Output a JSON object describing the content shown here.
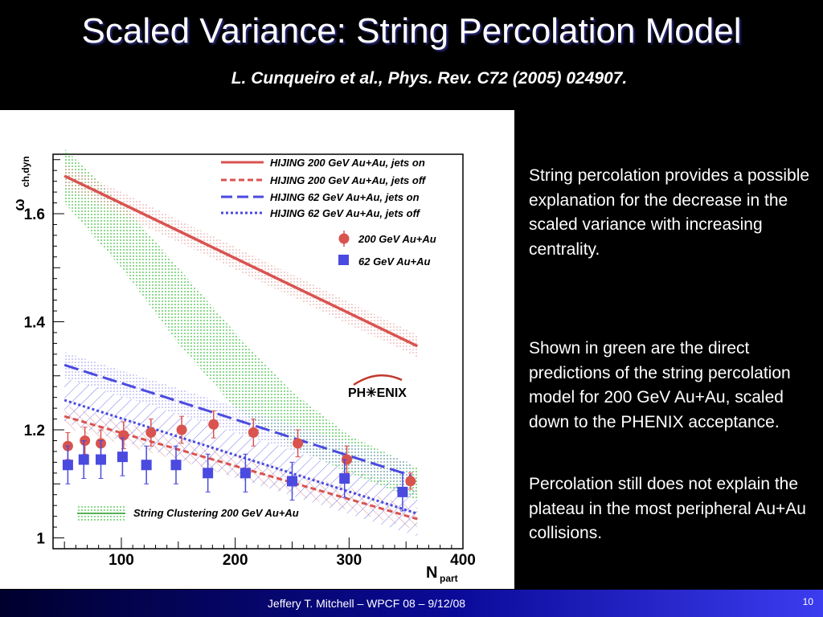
{
  "slide": {
    "title": "Scaled Variance: String Percolation Model",
    "subtitle": "L. Cunqueiro et al., Phys. Rev. C72 (2005) 024907.",
    "paragraphs": [
      "String percolation provides a possible explanation for the decrease in the scaled variance with increasing centrality.",
      "Shown in green are the direct predictions of the string percolation model for 200 GeV Au+Au, scaled down to the PHENIX acceptance.",
      "Percolation still does not explain the plateau in the most peripheral Au+Au collisions."
    ],
    "footer": "Jeffery T. Mitchell – WPCF 08 – 9/12/08",
    "page_number": "10"
  },
  "plot": {
    "logo_text": "PH✳ENIX",
    "legend_labels": [
      "HIJING 200 GeV Au+Au, jets on",
      "HIJING 200 GeV Au+Au, jets off",
      "HIJING 62 GeV Au+Au, jets on",
      "HIJING 62 GeV Au+Au, jets off",
      "200 GeV Au+Au",
      "62 GeV Au+Au",
      "String Clustering 200 GeV Au+Au"
    ]
  },
  "chart_data": {
    "type": "scatter",
    "xlabel": "N_part",
    "ylabel": "ω_ch,dyn",
    "xlim": [
      40,
      400
    ],
    "ylim": [
      0.98,
      1.71
    ],
    "x_ticks": [
      "100",
      "200",
      "300",
      "400"
    ],
    "y_ticks": [
      "1",
      "1.2",
      "1.4",
      "1.6"
    ],
    "colors": {
      "red": "#d9534f",
      "blue": "#4a4ae0",
      "green": "#3bbf3b"
    },
    "series": [
      {
        "name": "200 GeV Au+Au",
        "marker": "circle",
        "color": "#d9534f",
        "x": [
          53,
          68,
          82,
          102,
          126,
          153,
          181,
          216,
          255,
          298,
          354
        ],
        "y": [
          1.17,
          1.18,
          1.175,
          1.19,
          1.195,
          1.2,
          1.21,
          1.195,
          1.175,
          1.145,
          1.105
        ],
        "err": [
          0.025,
          0.025,
          0.025,
          0.025,
          0.025,
          0.025,
          0.025,
          0.025,
          0.025,
          0.025,
          0.015
        ]
      },
      {
        "name": "62 GeV Au+Au",
        "marker": "square",
        "color": "#4a4ae0",
        "x": [
          53,
          67,
          82,
          101,
          122,
          148,
          176,
          209,
          250,
          296,
          347
        ],
        "y": [
          1.135,
          1.145,
          1.145,
          1.15,
          1.135,
          1.135,
          1.12,
          1.12,
          1.105,
          1.11,
          1.085
        ],
        "err": [
          0.035,
          0.035,
          0.035,
          0.035,
          0.035,
          0.035,
          0.035,
          0.035,
          0.035,
          0.035,
          0.035
        ]
      },
      {
        "name": "HIJING 200 GeV Au+Au, jets on",
        "style": "solid",
        "color": "#d9534f",
        "x": [
          50,
          360
        ],
        "y": [
          1.67,
          1.355
        ]
      },
      {
        "name": "HIJING 200 GeV Au+Au, jets off",
        "style": "dashed",
        "color": "#d9534f",
        "x": [
          50,
          360
        ],
        "y": [
          1.225,
          1.035
        ]
      },
      {
        "name": "HIJING 62 GeV Au+Au, jets on",
        "style": "longdash",
        "color": "#4a4ae0",
        "x": [
          50,
          355
        ],
        "y": [
          1.32,
          1.115
        ]
      },
      {
        "name": "HIJING 62 GeV Au+Au, jets off",
        "style": "dotted",
        "color": "#4a4ae0",
        "x": [
          50,
          360
        ],
        "y": [
          1.255,
          1.045
        ]
      },
      {
        "name": "String Clustering 200 GeV Au+Au",
        "style": "band",
        "color": "#3bbf3b",
        "x": [
          50,
          100,
          150,
          200,
          250,
          300,
          360
        ],
        "y_low": [
          1.62,
          1.5,
          1.36,
          1.24,
          1.17,
          1.12,
          1.07
        ],
        "y_high": [
          1.72,
          1.62,
          1.5,
          1.38,
          1.27,
          1.19,
          1.13
        ]
      }
    ]
  }
}
